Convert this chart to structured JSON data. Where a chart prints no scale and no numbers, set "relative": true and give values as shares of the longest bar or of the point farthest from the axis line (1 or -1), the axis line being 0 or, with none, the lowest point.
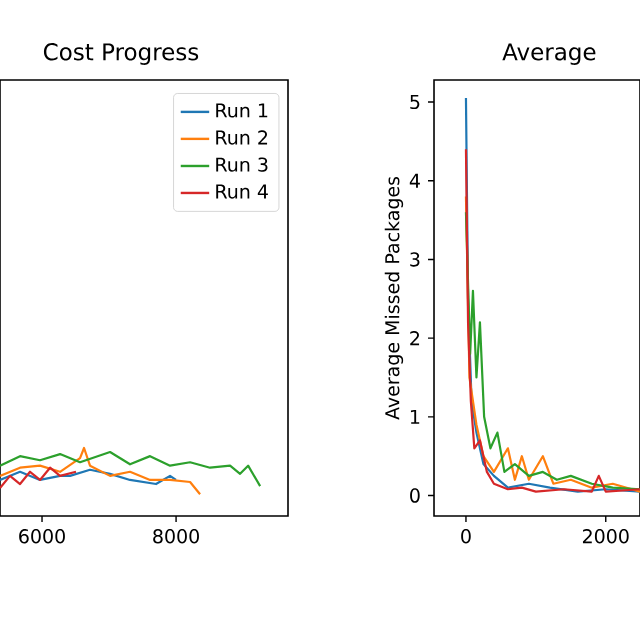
{
  "chart_data": [
    {
      "type": "line",
      "title": "Cost Progress",
      "relative": true,
      "tick_labels": "x",
      "legend": "top right",
      "xlim": [
        5373,
        9670
      ],
      "xticks": [
        6000,
        8000
      ],
      "marker": "none",
      "line_style": "solid",
      "series": [
        {
          "name": "Run 1",
          "color": "#1f77b4",
          "x": [
            5373,
            5672,
            5970,
            6269,
            6418,
            6716,
            7015,
            7313,
            7701,
            7910,
            7999
          ],
          "values": [
            0.53,
            0.65,
            0.53,
            0.59,
            0.59,
            0.68,
            0.62,
            0.53,
            0.47,
            0.59,
            0.53
          ]
        },
        {
          "name": "Run 2",
          "color": "#ff7f0e",
          "x": [
            5373,
            5672,
            5970,
            6269,
            6567,
            6627,
            6716,
            7015,
            7313,
            7612,
            7910,
            8209,
            8358
          ],
          "values": [
            0.59,
            0.71,
            0.74,
            0.65,
            0.85,
            1,
            0.74,
            0.59,
            0.65,
            0.53,
            0.53,
            0.5,
            0.32
          ]
        },
        {
          "name": "Run 3",
          "color": "#2ca02c",
          "x": [
            5373,
            5672,
            5970,
            6269,
            6567,
            7015,
            7313,
            7612,
            7910,
            8209,
            8507,
            8806,
            8955,
            9075,
            9254
          ],
          "values": [
            0.74,
            0.88,
            0.82,
            0.91,
            0.79,
            0.94,
            0.76,
            0.88,
            0.74,
            0.79,
            0.71,
            0.74,
            0.62,
            0.74,
            0.44
          ]
        },
        {
          "name": "Run 4",
          "color": "#d62728",
          "x": [
            5373,
            5522,
            5672,
            5821,
            5970,
            6120,
            6269,
            6507
          ],
          "values": [
            0.41,
            0.59,
            0.47,
            0.65,
            0.53,
            0.71,
            0.59,
            0.65
          ]
        }
      ]
    },
    {
      "type": "line",
      "title": "Average",
      "ylabel": "Average Missed Packages",
      "xlim": [
        -457,
        2490
      ],
      "ylim": [
        -0.26,
        5.28
      ],
      "xticks": [
        0,
        2000
      ],
      "yticks": [
        0,
        1,
        2,
        3,
        4,
        5
      ],
      "marker": "none",
      "line_style": "solid",
      "series": [
        {
          "color": "#1f77b4",
          "x": [
            0,
            30,
            80,
            150,
            250,
            400,
            600,
            900,
            1200,
            1600,
            2000,
            2490
          ],
          "values": [
            5.05,
            2.5,
            1.2,
            0.8,
            0.4,
            0.25,
            0.1,
            0.15,
            0.1,
            0.05,
            0.08,
            0.05
          ]
        },
        {
          "color": "#ff7f0e",
          "x": [
            0,
            50,
            150,
            250,
            400,
            600,
            700,
            800,
            900,
            1100,
            1250,
            1500,
            1800,
            2100,
            2490
          ],
          "values": [
            3.8,
            1.5,
            0.9,
            0.5,
            0.3,
            0.6,
            0.2,
            0.5,
            0.2,
            0.5,
            0.15,
            0.2,
            0.1,
            0.15,
            0.05
          ]
        },
        {
          "color": "#2ca02c",
          "x": [
            0,
            60,
            100,
            150,
            200,
            260,
            350,
            450,
            550,
            700,
            900,
            1100,
            1300,
            1500,
            1800,
            2100,
            2490
          ],
          "values": [
            3.6,
            1.8,
            2.6,
            1.5,
            2.2,
            1.0,
            0.6,
            0.8,
            0.3,
            0.4,
            0.25,
            0.3,
            0.2,
            0.25,
            0.15,
            0.1,
            0.08
          ]
        },
        {
          "color": "#d62728",
          "x": [
            0,
            30,
            70,
            120,
            200,
            300,
            400,
            600,
            800,
            1000,
            1400,
            1800,
            1900,
            2000,
            2490
          ],
          "values": [
            4.4,
            2.2,
            1.2,
            0.6,
            0.7,
            0.3,
            0.15,
            0.08,
            0.1,
            0.05,
            0.08,
            0.05,
            0.25,
            0.05,
            0.08
          ]
        }
      ]
    }
  ]
}
